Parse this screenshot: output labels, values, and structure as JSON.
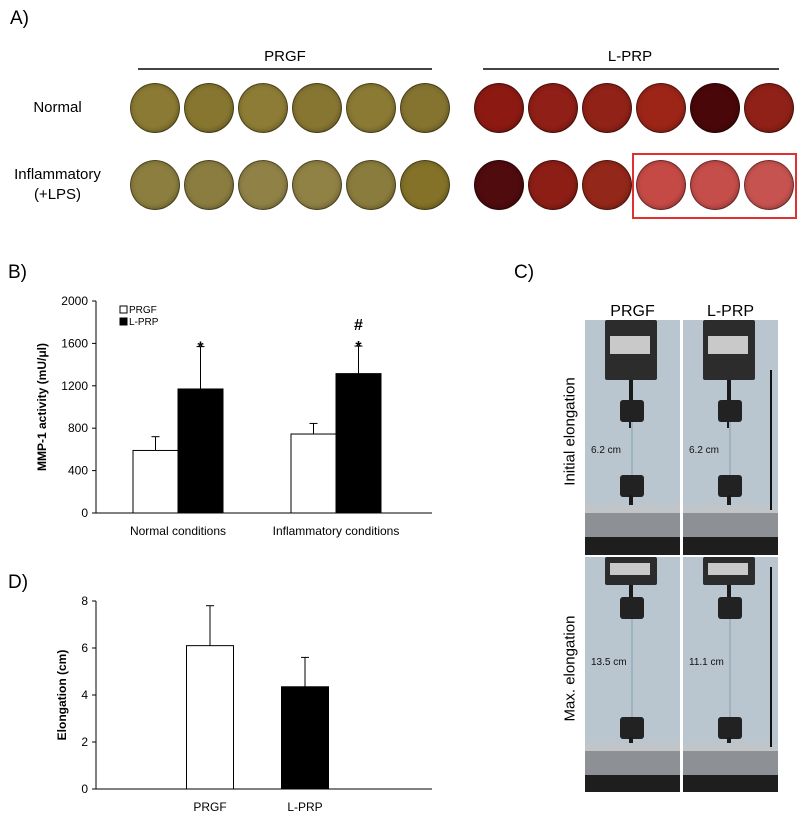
{
  "panelA": {
    "label": "A)",
    "groups": [
      {
        "name": "PRGF"
      },
      {
        "name": "L-PRP"
      }
    ],
    "rows": [
      {
        "label": "Normal"
      },
      {
        "label_line1": "Inflammatory",
        "label_line2": "(+LPS)"
      }
    ],
    "colors": {
      "prgf_normal": [
        "#8a7a33",
        "#86762f",
        "#8d7c35",
        "#877632",
        "#8a7a34",
        "#857430"
      ],
      "prgf_inflam": [
        "#8b7e3e",
        "#8b7d40",
        "#908246",
        "#908144",
        "#8a7c3d",
        "#837228"
      ],
      "lprp_normal": [
        "#8c1a13",
        "#8f1f17",
        "#902218",
        "#9c2518",
        "#4a0709",
        "#8f2118"
      ],
      "lprp_inflam": [
        "#4f0b0e",
        "#8c1e16",
        "#932719",
        "#c54a46",
        "#c54d4a",
        "#c75350"
      ]
    }
  },
  "panelB": {
    "label": "B)",
    "chart_data": {
      "type": "bar",
      "categories": [
        "Normal conditions",
        "Inflammatory conditions"
      ],
      "series": [
        {
          "name": "PRGF",
          "values": [
            590,
            745
          ],
          "errors": [
            130,
            100
          ],
          "color": "#ffffff"
        },
        {
          "name": "L-PRP",
          "values": [
            1170,
            1315
          ],
          "errors": [
            400,
            260
          ],
          "color": "#000000"
        }
      ],
      "ylabel": "MMP-1 activity (mU/μl)",
      "ylim": [
        0,
        2000
      ],
      "yticks": [
        0,
        400,
        800,
        1200,
        1600,
        2000
      ],
      "legend": "top-left",
      "annotations": [
        {
          "category": 0,
          "series": 1,
          "text": "*"
        },
        {
          "category": 1,
          "series": 1,
          "text": "*"
        },
        {
          "category": 1,
          "series": 1,
          "text": "#"
        }
      ]
    }
  },
  "panelC": {
    "label": "C)",
    "columns": [
      "PRGF",
      "L-PRP"
    ],
    "rows": [
      "Initial elongation",
      "Max. elongation"
    ],
    "measurements": [
      [
        "6.2 cm",
        "6.2 cm"
      ],
      [
        "13.5 cm",
        "11.1 cm"
      ]
    ]
  },
  "panelD": {
    "label": "D)",
    "chart_data": {
      "type": "bar",
      "categories": [
        "PRGF",
        "L-PRP"
      ],
      "values": [
        6.1,
        4.35
      ],
      "errors": [
        1.7,
        1.25
      ],
      "colors": [
        "#ffffff",
        "#000000"
      ],
      "ylabel": "Elongation (cm)",
      "ylim": [
        0,
        8
      ],
      "yticks": [
        0,
        2,
        4,
        6,
        8
      ]
    }
  }
}
